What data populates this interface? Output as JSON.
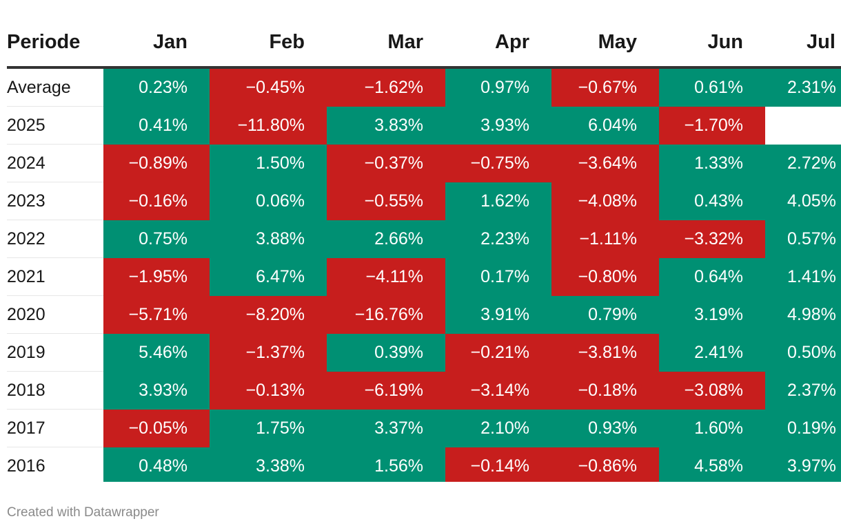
{
  "chart_data": {
    "type": "heatmap",
    "title": "",
    "row_header": "Periode",
    "columns": [
      "Jan",
      "Feb",
      "Mar",
      "Apr",
      "May",
      "Jun",
      "Jul"
    ],
    "rows": [
      {
        "period": "Average",
        "values": [
          "0.23%",
          "−0.45%",
          "−1.62%",
          "0.97%",
          "−0.67%",
          "0.61%",
          "2.31%"
        ]
      },
      {
        "period": "2025",
        "values": [
          "0.41%",
          "−11.80%",
          "3.83%",
          "3.93%",
          "6.04%",
          "−1.70%",
          ""
        ]
      },
      {
        "period": "2024",
        "values": [
          "−0.89%",
          "1.50%",
          "−0.37%",
          "−0.75%",
          "−3.64%",
          "1.33%",
          "2.72%"
        ]
      },
      {
        "period": "2023",
        "values": [
          "−0.16%",
          "0.06%",
          "−0.55%",
          "1.62%",
          "−4.08%",
          "0.43%",
          "4.05%"
        ]
      },
      {
        "period": "2022",
        "values": [
          "0.75%",
          "3.88%",
          "2.66%",
          "2.23%",
          "−1.11%",
          "−3.32%",
          "0.57%"
        ]
      },
      {
        "period": "2021",
        "values": [
          "−1.95%",
          "6.47%",
          "−4.11%",
          "0.17%",
          "−0.80%",
          "0.64%",
          "1.41%"
        ]
      },
      {
        "period": "2020",
        "values": [
          "−5.71%",
          "−8.20%",
          "−16.76%",
          "3.91%",
          "0.79%",
          "3.19%",
          "4.98%"
        ]
      },
      {
        "period": "2019",
        "values": [
          "5.46%",
          "−1.37%",
          "0.39%",
          "−0.21%",
          "−3.81%",
          "2.41%",
          "0.50%"
        ]
      },
      {
        "period": "2018",
        "values": [
          "3.93%",
          "−0.13%",
          "−6.19%",
          "−3.14%",
          "−0.18%",
          "−3.08%",
          "2.37%"
        ]
      },
      {
        "period": "2017",
        "values": [
          "−0.05%",
          "1.75%",
          "3.37%",
          "2.10%",
          "0.93%",
          "1.60%",
          "0.19%"
        ]
      },
      {
        "period": "2016",
        "values": [
          "0.48%",
          "3.38%",
          "1.56%",
          "−0.14%",
          "−0.86%",
          "4.58%",
          "3.97%"
        ]
      }
    ],
    "colors": {
      "positive": "#009073",
      "negative": "#c71e1d"
    }
  },
  "footer": {
    "credit": "Created with Datawrapper"
  }
}
